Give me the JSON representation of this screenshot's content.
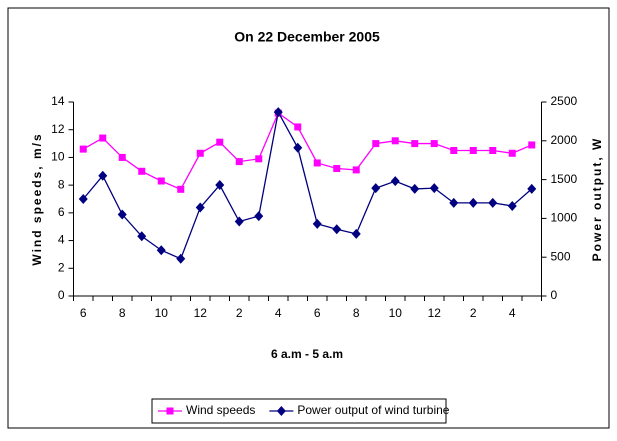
{
  "chart_data": {
    "type": "line",
    "title": "On 22 December 2005",
    "x_label": "6 a.m - 5 a.m",
    "y_label": "Wind speeds, m/s",
    "y2_label": "Power output, W",
    "categories": [
      "6",
      null,
      "8",
      null,
      "10",
      null,
      "12",
      null,
      "2",
      null,
      "4",
      null,
      "6",
      null,
      "8",
      null,
      "10",
      null,
      "12",
      null,
      "2",
      null,
      "4",
      null
    ],
    "ylim": [
      0,
      14
    ],
    "yticks": [
      0,
      2,
      4,
      6,
      8,
      10,
      12,
      14
    ],
    "y2lim": [
      0,
      2500
    ],
    "y2ticks": [
      0,
      500,
      1000,
      1500,
      2000,
      2500
    ],
    "legend": "bottom",
    "series": [
      {
        "name": "Wind speeds",
        "color": "#ff00ff",
        "marker": "square",
        "values": [
          10.6,
          11.4,
          10,
          9,
          8.3,
          7.7,
          10.3,
          11.1,
          9.7,
          9.9,
          13.2,
          12.2,
          9.6,
          9.2,
          9.1,
          11,
          11.2,
          11,
          11,
          10.5,
          10.5,
          10.5,
          10.3,
          10.9
        ]
      },
      {
        "name": "Power output of wind turbine",
        "color": "#000080",
        "marker": "diamond",
        "axis": "y2",
        "values": [
          1250,
          1550,
          1050,
          770,
          590,
          480,
          1140,
          1430,
          960,
          1030,
          2370,
          1910,
          930,
          860,
          800,
          1390,
          1480,
          1380,
          1390,
          1200,
          1200,
          1200,
          1160,
          1380
        ]
      }
    ]
  }
}
